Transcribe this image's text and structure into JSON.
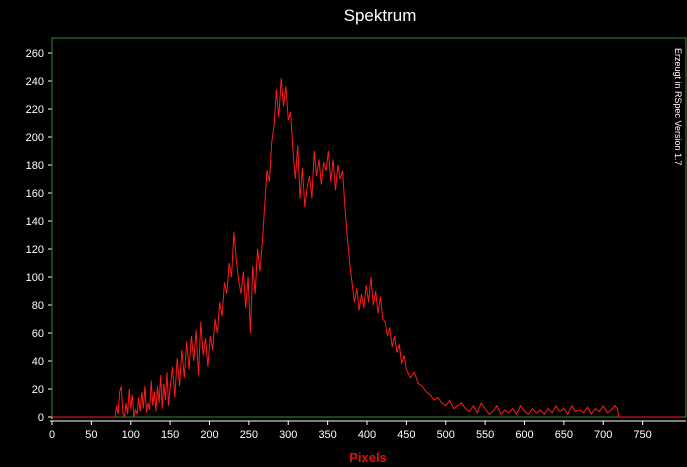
{
  "chart_data": {
    "type": "line",
    "title": "Spektrum",
    "xlabel": "Pixels",
    "ylabel": "",
    "xlim": [
      0,
      800
    ],
    "ylim": [
      0,
      265
    ],
    "x_ticks": [
      0,
      50,
      100,
      150,
      200,
      250,
      300,
      350,
      400,
      450,
      500,
      550,
      600,
      650,
      700,
      750
    ],
    "y_ticks": [
      0,
      20,
      40,
      60,
      80,
      100,
      120,
      140,
      160,
      180,
      200,
      220,
      240,
      260
    ],
    "annotation": "Erzeugt in RSpec Version 1.7",
    "grid": false,
    "legend": "none",
    "series": [
      {
        "color": "#ff1a1a",
        "x": [
          0,
          80,
          82,
          84,
          86,
          88,
          90,
          92,
          94,
          96,
          98,
          100,
          102,
          104,
          106,
          108,
          110,
          112,
          114,
          116,
          118,
          120,
          122,
          124,
          126,
          128,
          130,
          132,
          134,
          136,
          138,
          140,
          142,
          144,
          146,
          148,
          150,
          153,
          156,
          159,
          162,
          165,
          168,
          171,
          174,
          177,
          180,
          183,
          186,
          189,
          192,
          195,
          198,
          201,
          204,
          207,
          210,
          213,
          216,
          219,
          222,
          225,
          228,
          231,
          234,
          237,
          240,
          243,
          246,
          249,
          252,
          255,
          258,
          261,
          264,
          267,
          270,
          273,
          276,
          279,
          282,
          285,
          288,
          291,
          294,
          297,
          300,
          303,
          306,
          309,
          312,
          315,
          318,
          321,
          324,
          327,
          330,
          333,
          336,
          339,
          342,
          345,
          348,
          351,
          354,
          357,
          360,
          363,
          366,
          369,
          372,
          375,
          378,
          381,
          384,
          387,
          390,
          393,
          396,
          399,
          402,
          405,
          408,
          411,
          414,
          417,
          420,
          423,
          426,
          429,
          432,
          435,
          438,
          441,
          444,
          447,
          450,
          455,
          460,
          465,
          470,
          475,
          480,
          485,
          490,
          495,
          500,
          505,
          510,
          515,
          520,
          525,
          530,
          535,
          540,
          545,
          550,
          555,
          560,
          565,
          570,
          575,
          580,
          585,
          590,
          595,
          600,
          605,
          610,
          615,
          620,
          625,
          630,
          635,
          640,
          645,
          650,
          655,
          660,
          665,
          670,
          675,
          680,
          685,
          690,
          695,
          700,
          705,
          710,
          715,
          718,
          720,
          725,
          800
        ],
        "y": [
          0,
          0,
          8,
          2,
          18,
          22,
          3,
          0,
          10,
          2,
          20,
          6,
          16,
          0,
          5,
          2,
          14,
          4,
          18,
          6,
          22,
          3,
          10,
          5,
          26,
          8,
          18,
          4,
          22,
          10,
          30,
          6,
          24,
          12,
          32,
          8,
          20,
          36,
          14,
          42,
          22,
          48,
          28,
          54,
          34,
          58,
          40,
          62,
          30,
          68,
          44,
          56,
          36,
          58,
          48,
          70,
          60,
          82,
          72,
          96,
          88,
          110,
          100,
          132,
          112,
          98,
          88,
          104,
          78,
          100,
          60,
          108,
          88,
          120,
          104,
          124,
          150,
          176,
          168,
          196,
          208,
          234,
          214,
          242,
          222,
          236,
          212,
          218,
          190,
          170,
          194,
          156,
          178,
          150,
          164,
          172,
          156,
          190,
          172,
          184,
          166,
          182,
          176,
          190,
          168,
          184,
          162,
          180,
          170,
          176,
          150,
          128,
          110,
          96,
          82,
          92,
          76,
          88,
          78,
          94,
          82,
          100,
          80,
          90,
          74,
          86,
          70,
          68,
          58,
          64,
          50,
          58,
          46,
          52,
          38,
          44,
          34,
          28,
          32,
          24,
          22,
          18,
          16,
          12,
          14,
          10,
          8,
          12,
          6,
          8,
          10,
          6,
          4,
          8,
          3,
          10,
          6,
          2,
          4,
          8,
          2,
          5,
          3,
          6,
          2,
          8,
          4,
          2,
          6,
          3,
          5,
          2,
          6,
          3,
          8,
          4,
          6,
          2,
          8,
          4,
          5,
          3,
          7,
          2,
          6,
          4,
          8,
          3,
          5,
          8,
          6,
          0,
          0,
          0
        ]
      }
    ]
  }
}
